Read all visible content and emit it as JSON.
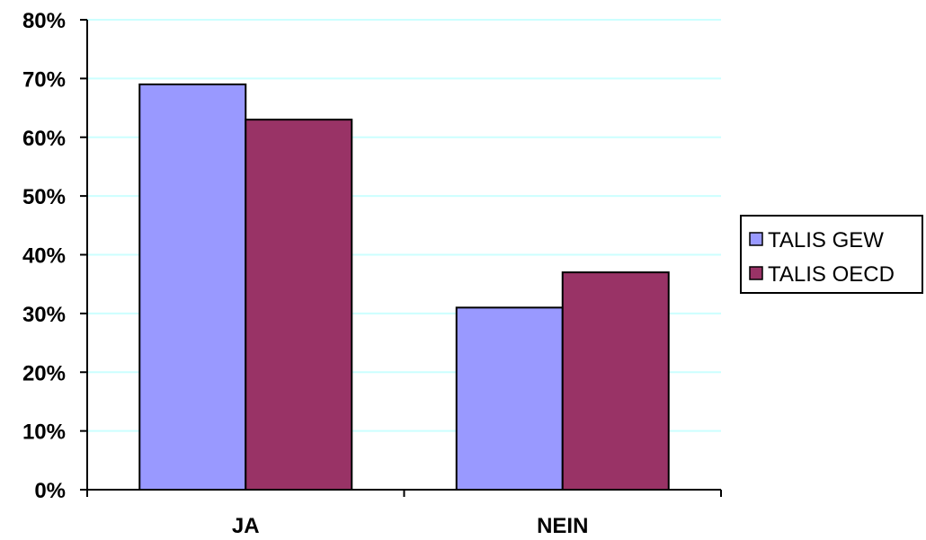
{
  "chart_data": {
    "type": "bar",
    "categories": [
      "JA",
      "NEIN"
    ],
    "series": [
      {
        "name": "TALIS GEW",
        "values": [
          69,
          31
        ],
        "color": "#9999FF"
      },
      {
        "name": "TALIS OECD",
        "values": [
          63,
          37
        ],
        "color": "#993366"
      }
    ],
    "yticks": [
      "0%",
      "10%",
      "20%",
      "30%",
      "40%",
      "50%",
      "60%",
      "70%",
      "80%"
    ],
    "ylim": [
      0,
      80
    ],
    "grid": true,
    "grid_color": "#ccffff",
    "legend_position": "right"
  }
}
